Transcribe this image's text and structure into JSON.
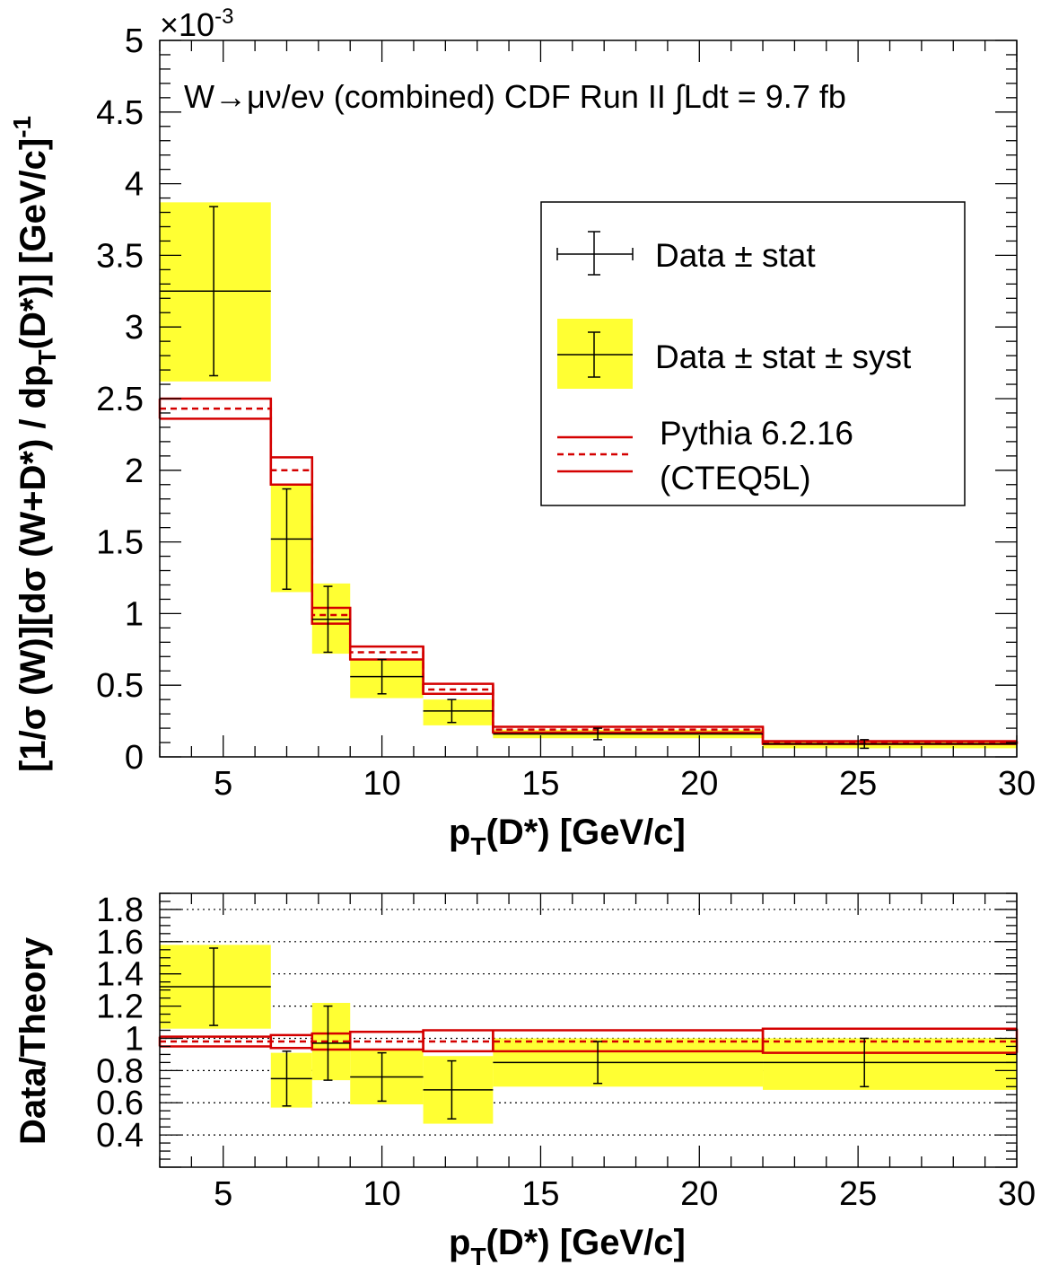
{
  "chart_data": [
    {
      "type": "line",
      "title": "",
      "annotation": "W→μν/eν (combined)   CDF Run II    ∫Ldt = 9.7 fb",
      "exponent_label": "×10",
      "exponent_value": "-3",
      "xlabel": "p_T(D*) [GeV/c]",
      "ylabel": "[1/σ (W)][dσ (W+D*) / dp_T(D*)] [GeV/c]^-1",
      "xlim": [
        3,
        30
      ],
      "ylim": [
        0,
        5
      ],
      "xticks": [
        5,
        10,
        15,
        20,
        25,
        30
      ],
      "yticks": [
        0,
        0.5,
        1,
        1.5,
        2,
        2.5,
        3,
        3.5,
        4,
        4.5,
        5
      ],
      "ytick_labels": [
        "0",
        "0.5",
        "1",
        "1.5",
        "2",
        "2.5",
        "3",
        "3.5",
        "4",
        "4.5",
        "5"
      ],
      "bin_edges": [
        3.0,
        6.5,
        7.8,
        9.0,
        11.3,
        13.5,
        22.0,
        30.0
      ],
      "data": {
        "x": [
          4.7,
          7.0,
          8.3,
          10.0,
          12.2,
          16.8,
          25.2
        ],
        "y": [
          3.25,
          1.52,
          0.96,
          0.56,
          0.32,
          0.16,
          0.09
        ],
        "stat_err": [
          0.59,
          0.35,
          0.23,
          0.12,
          0.08,
          0.04,
          0.03
        ],
        "syst_low": [
          2.62,
          1.15,
          0.72,
          0.41,
          0.22,
          0.13,
          0.06
        ],
        "syst_high": [
          3.87,
          1.9,
          1.21,
          0.68,
          0.4,
          0.19,
          0.11
        ]
      },
      "theory": {
        "central": [
          2.43,
          2.0,
          0.99,
          0.73,
          0.47,
          0.19,
          0.1
        ],
        "low": [
          2.36,
          1.9,
          0.93,
          0.68,
          0.44,
          0.17,
          0.09
        ],
        "high": [
          2.5,
          2.09,
          1.04,
          0.77,
          0.51,
          0.21,
          0.11
        ]
      },
      "legend": {
        "placement": "top-right",
        "entries": [
          "Data ± stat",
          "Data ± stat ± syst",
          "Pythia 6.2.16",
          "(CTEQ5L)"
        ]
      },
      "colors": {
        "syst_band": "#ffff33",
        "theory": "#d40000",
        "data": "#000000"
      },
      "grid": false
    },
    {
      "type": "line",
      "title": "",
      "xlabel": "p_T(D*) [GeV/c]",
      "ylabel": "Data/Theory",
      "xlim": [
        3,
        30
      ],
      "ylim": [
        0.2,
        1.9
      ],
      "xticks": [
        5,
        10,
        15,
        20,
        25,
        30
      ],
      "yticks": [
        0.4,
        0.6,
        0.8,
        1,
        1.2,
        1.4,
        1.6,
        1.8
      ],
      "ytick_labels": [
        "0.4",
        "0.6",
        "0.8",
        "1",
        "1.2",
        "1.4",
        "1.6",
        "1.8"
      ],
      "grid_lines": [
        0.4,
        0.6,
        0.8,
        1.0,
        1.2,
        1.4,
        1.6,
        1.8
      ],
      "bin_edges": [
        3.0,
        6.5,
        7.8,
        9.0,
        11.3,
        13.5,
        22.0,
        30.0
      ],
      "data": {
        "x": [
          4.7,
          7.0,
          8.3,
          10.0,
          12.2,
          16.8,
          25.2
        ],
        "y": [
          1.32,
          0.75,
          0.97,
          0.76,
          0.68,
          0.85,
          0.85
        ],
        "stat_err": [
          0.24,
          0.17,
          0.23,
          0.15,
          0.18,
          0.13,
          0.15
        ],
        "syst_low": [
          1.06,
          0.57,
          0.74,
          0.59,
          0.47,
          0.7,
          0.68
        ],
        "syst_high": [
          1.58,
          0.91,
          1.22,
          0.93,
          0.89,
          1.0,
          1.0
        ]
      },
      "theory": {
        "central": [
          0.98,
          0.98,
          0.98,
          0.98,
          0.98,
          0.98,
          0.98
        ],
        "low": [
          0.95,
          0.94,
          0.93,
          0.93,
          0.92,
          0.92,
          0.91
        ],
        "high": [
          1.01,
          1.02,
          1.03,
          1.04,
          1.05,
          1.05,
          1.06
        ]
      },
      "grid": true
    }
  ]
}
